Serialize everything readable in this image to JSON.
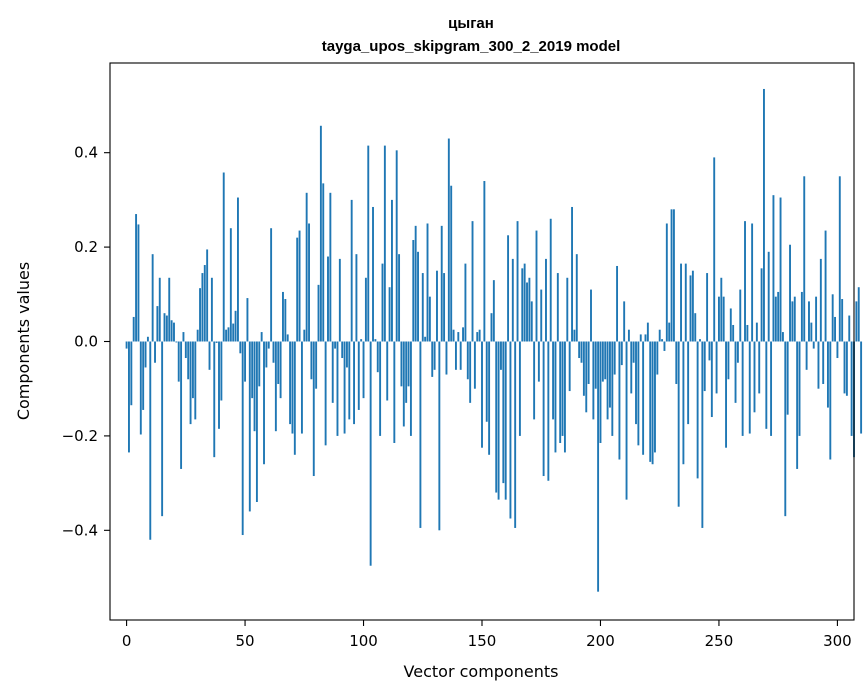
{
  "chart_data": {
    "type": "bar",
    "title": "цыган",
    "subtitle": "tayga_upos_skipgram_300_2_2019 model",
    "xlabel": "Vector components",
    "ylabel": "Components values",
    "xlim": [
      -7,
      307
    ],
    "ylim": [
      -0.59,
      0.59
    ],
    "xticks": [
      0,
      50,
      100,
      150,
      200,
      250,
      300
    ],
    "yticks": [
      -0.4,
      -0.2,
      0.0,
      0.2,
      0.4
    ],
    "ytick_labels": [
      "−0.4",
      "−0.2",
      "0.0",
      "0.2",
      "0.4"
    ],
    "bar_color": "#1f77b4",
    "grid": false,
    "values": [
      -0.015,
      -0.235,
      -0.135,
      0.052,
      0.27,
      0.248,
      -0.197,
      -0.145,
      -0.055,
      0.01,
      -0.42,
      0.185,
      -0.045,
      0.075,
      0.135,
      -0.37,
      0.06,
      0.055,
      0.135,
      0.045,
      0.04,
      -0.002,
      -0.085,
      -0.27,
      0.02,
      -0.035,
      -0.08,
      -0.175,
      -0.12,
      -0.165,
      0.025,
      0.113,
      0.145,
      0.162,
      0.195,
      -0.06,
      0.135,
      -0.245,
      -0.003,
      -0.185,
      -0.125,
      0.358,
      0.025,
      0.03,
      0.24,
      0.038,
      0.065,
      0.305,
      -0.025,
      -0.41,
      -0.085,
      0.092,
      -0.36,
      -0.12,
      -0.19,
      -0.34,
      -0.095,
      0.02,
      -0.26,
      -0.055,
      -0.015,
      0.24,
      -0.045,
      -0.19,
      -0.09,
      -0.12,
      0.105,
      0.09,
      0.015,
      -0.175,
      -0.195,
      -0.24,
      0.22,
      0.235,
      -0.195,
      0.025,
      0.315,
      0.25,
      -0.08,
      -0.285,
      -0.1,
      0.12,
      0.457,
      0.335,
      -0.22,
      0.18,
      0.315,
      -0.13,
      -0.015,
      -0.2,
      0.175,
      -0.035,
      -0.195,
      -0.055,
      -0.165,
      0.3,
      -0.175,
      0.185,
      -0.145,
      0.005,
      -0.12,
      0.135,
      0.415,
      -0.475,
      0.285,
      0.005,
      -0.065,
      -0.2,
      0.165,
      0.415,
      -0.125,
      0.115,
      0.3,
      -0.215,
      0.405,
      0.185,
      -0.095,
      -0.18,
      -0.13,
      -0.095,
      -0.2,
      0.215,
      0.245,
      0.19,
      -0.395,
      0.145,
      0.01,
      0.25,
      0.095,
      -0.075,
      -0.06,
      0.15,
      -0.4,
      0.245,
      0.145,
      -0.07,
      0.43,
      0.33,
      0.025,
      -0.06,
      0.02,
      -0.06,
      0.03,
      0.165,
      -0.08,
      -0.13,
      0.255,
      -0.1,
      0.02,
      0.025,
      -0.225,
      0.34,
      -0.17,
      -0.24,
      0.06,
      0.13,
      -0.32,
      -0.335,
      -0.06,
      -0.3,
      -0.335,
      0.225,
      -0.375,
      0.175,
      -0.395,
      0.255,
      -0.2,
      0.155,
      0.165,
      0.125,
      0.135,
      0.085,
      -0.165,
      0.235,
      -0.085,
      0.11,
      -0.285,
      0.175,
      -0.295,
      0.26,
      -0.165,
      -0.235,
      0.145,
      -0.215,
      -0.2,
      -0.235,
      0.135,
      -0.105,
      0.285,
      0.025,
      0.185,
      -0.035,
      -0.045,
      -0.115,
      -0.15,
      -0.09,
      0.11,
      -0.165,
      -0.1,
      -0.53,
      -0.215,
      -0.085,
      -0.08,
      -0.165,
      -0.14,
      -0.2,
      -0.07,
      0.16,
      -0.25,
      -0.05,
      0.085,
      -0.335,
      0.025,
      -0.11,
      -0.045,
      -0.175,
      -0.22,
      0.015,
      -0.24,
      0.015,
      0.04,
      -0.255,
      -0.26,
      -0.235,
      -0.07,
      0.025,
      0.005,
      -0.02,
      0.25,
      0.04,
      0.28,
      0.28,
      -0.09,
      -0.35,
      0.165,
      -0.26,
      0.165,
      -0.175,
      0.14,
      0.15,
      0.06,
      -0.29,
      0.005,
      -0.395,
      -0.105,
      0.145,
      -0.04,
      -0.16,
      0.39,
      -0.11,
      0.095,
      0.135,
      0.095,
      -0.225,
      -0.08,
      0.07,
      0.035,
      -0.13,
      -0.045,
      0.11,
      -0.2,
      0.255,
      0.035,
      -0.195,
      0.25,
      -0.15,
      0.04,
      -0.11,
      0.155,
      0.535,
      -0.185,
      0.19,
      -0.2,
      0.31,
      0.095,
      0.105,
      0.305,
      0.02,
      -0.37,
      -0.155,
      0.205,
      0.085,
      0.095,
      -0.27,
      -0.2,
      0.105,
      0.35,
      -0.06,
      0.085,
      0.04,
      -0.015,
      0.095,
      -0.1,
      0.175,
      -0.09,
      0.235,
      -0.14,
      -0.25,
      0.1,
      0.052,
      -0.035,
      0.35,
      0.09,
      -0.11,
      -0.115,
      0.055,
      -0.2,
      -0.245,
      0.085,
      0.115,
      -0.195
    ]
  }
}
